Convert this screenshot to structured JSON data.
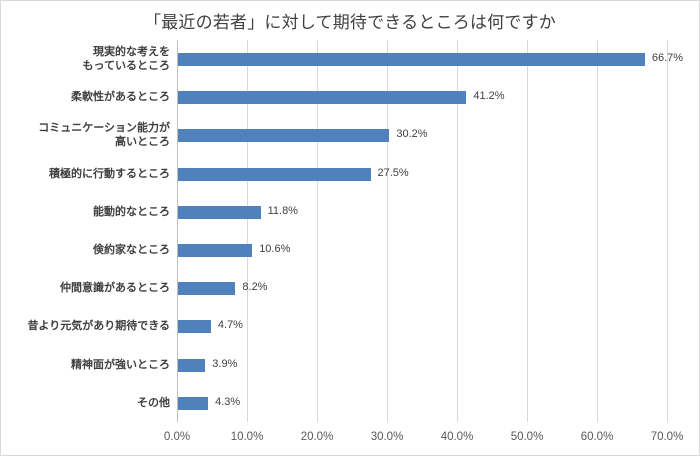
{
  "chart_data": {
    "type": "bar",
    "orientation": "horizontal",
    "title": "「最近の若者」に対して期待できるところは何ですか",
    "xlabel": "",
    "ylabel": "",
    "xlim": [
      0,
      70
    ],
    "x_tick_labels": [
      "0.0%",
      "10.0%",
      "20.0%",
      "30.0%",
      "40.0%",
      "50.0%",
      "60.0%",
      "70.0%"
    ],
    "grid": true,
    "legend": null,
    "bar_color": "#4f81bd",
    "categories": [
      "現実的な考えを\nもっているところ",
      "柔軟性があるところ",
      "コミュニケーション能力が\n高いところ",
      "積極的に行動するところ",
      "能動的なところ",
      "倹約家なところ",
      "仲間意識があるところ",
      "昔より元気があり期待できる",
      "精神面が強いところ",
      "その他"
    ],
    "values": [
      66.7,
      41.2,
      30.2,
      27.5,
      11.8,
      10.6,
      8.2,
      4.7,
      3.9,
      4.3
    ],
    "value_labels": [
      "66.7%",
      "41.2%",
      "30.2%",
      "27.5%",
      "11.8%",
      "10.6%",
      "8.2%",
      "4.7%",
      "3.9%",
      "4.3%"
    ]
  }
}
